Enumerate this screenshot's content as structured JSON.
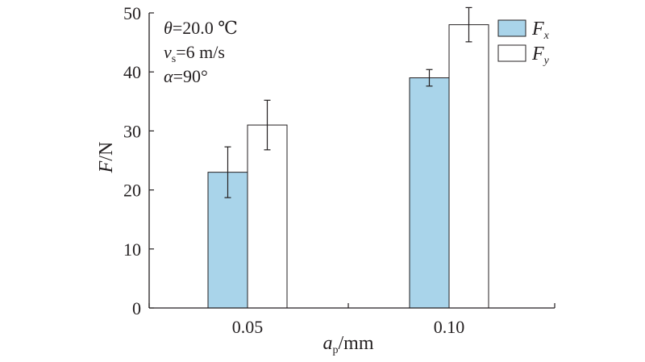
{
  "chart_data": {
    "type": "bar",
    "categories": [
      "0.05",
      "0.10"
    ],
    "series": [
      {
        "name": "F_x",
        "values": [
          23,
          39
        ],
        "errors": [
          4.3,
          1.4
        ],
        "color": "#a9d4ea"
      },
      {
        "name": "F_y",
        "values": [
          31,
          48
        ],
        "errors": [
          4.2,
          2.9
        ],
        "color": "#ffffff"
      }
    ],
    "ylim": [
      0,
      50
    ],
    "yticks": [
      "0",
      "10",
      "20",
      "30",
      "40",
      "50"
    ],
    "ylabel": {
      "main": "F",
      "rest": "/N"
    },
    "xlabel": {
      "main": "a",
      "sub": "p",
      "rest": "/mm"
    },
    "legend": [
      {
        "main": "F",
        "sub": "x"
      },
      {
        "main": "F",
        "sub": "y"
      }
    ],
    "legend_position": "top-right",
    "annotations": {
      "theta": {
        "symbol": "θ",
        "rest": "=20.0 ℃"
      },
      "vs": {
        "symbol": "v",
        "sub": "s",
        "rest": "=6 m/s"
      },
      "alpha": {
        "symbol": "α",
        "rest": "=90°"
      }
    },
    "grid": false
  }
}
